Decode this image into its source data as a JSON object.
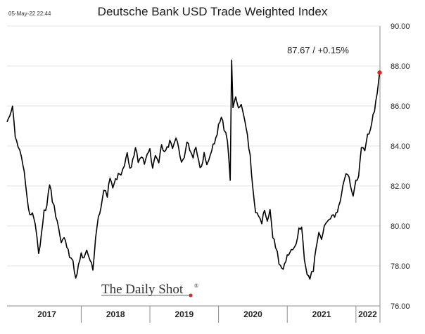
{
  "timestamp": "05-May-22 22:44",
  "chart_data": {
    "type": "line",
    "title": "Deutsche Bank USD Trade Weighted Index",
    "xlabel": "",
    "ylabel": "",
    "ylim": [
      76,
      90
    ],
    "y_ticks": [
      "76.00",
      "78.00",
      "80.00",
      "82.00",
      "84.00",
      "86.00",
      "88.00",
      "90.00"
    ],
    "x_range": [
      2016.92,
      2022.35
    ],
    "x_ticks": [
      {
        "label": "2017",
        "center": 2017.5
      },
      {
        "label": "2018",
        "center": 2018.5
      },
      {
        "label": "2019",
        "center": 2019.5
      },
      {
        "label": "2020",
        "center": 2020.5
      },
      {
        "label": "2021",
        "center": 2021.5
      },
      {
        "label": "2022",
        "center": 2022.17
      }
    ],
    "x_dividers": [
      2018.0,
      2019.0,
      2020.0,
      2021.0,
      2022.0
    ],
    "grid": true,
    "series": [
      {
        "name": "Deutsche Bank USD Trade Weighted Index",
        "color": "#000000",
        "points": [
          [
            2016.92,
            85.2
          ],
          [
            2016.96,
            85.6
          ],
          [
            2017.0,
            86.0
          ],
          [
            2017.04,
            84.5
          ],
          [
            2017.08,
            84.0
          ],
          [
            2017.13,
            83.5
          ],
          [
            2017.17,
            82.8
          ],
          [
            2017.21,
            81.5
          ],
          [
            2017.25,
            80.5
          ],
          [
            2017.29,
            80.6
          ],
          [
            2017.33,
            80.1
          ],
          [
            2017.38,
            78.6
          ],
          [
            2017.42,
            79.5
          ],
          [
            2017.46,
            80.8
          ],
          [
            2017.5,
            81.0
          ],
          [
            2017.54,
            82.1
          ],
          [
            2017.58,
            81.3
          ],
          [
            2017.63,
            80.5
          ],
          [
            2017.67,
            80.0
          ],
          [
            2017.71,
            79.2
          ],
          [
            2017.75,
            79.5
          ],
          [
            2017.79,
            79.0
          ],
          [
            2017.83,
            78.5
          ],
          [
            2017.88,
            78.2
          ],
          [
            2017.92,
            77.3
          ],
          [
            2017.96,
            78.0
          ],
          [
            2018.0,
            78.6
          ],
          [
            2018.04,
            78.3
          ],
          [
            2018.08,
            78.7
          ],
          [
            2018.13,
            78.2
          ],
          [
            2018.17,
            77.9
          ],
          [
            2018.21,
            79.5
          ],
          [
            2018.25,
            80.5
          ],
          [
            2018.29,
            81.0
          ],
          [
            2018.33,
            81.8
          ],
          [
            2018.38,
            81.5
          ],
          [
            2018.42,
            82.5
          ],
          [
            2018.46,
            82.0
          ],
          [
            2018.5,
            82.3
          ],
          [
            2018.54,
            82.6
          ],
          [
            2018.58,
            82.5
          ],
          [
            2018.63,
            83.0
          ],
          [
            2018.67,
            83.6
          ],
          [
            2018.71,
            82.8
          ],
          [
            2018.75,
            83.3
          ],
          [
            2018.79,
            84.0
          ],
          [
            2018.83,
            83.2
          ],
          [
            2018.88,
            83.5
          ],
          [
            2018.92,
            83.1
          ],
          [
            2018.96,
            83.6
          ],
          [
            2019.0,
            83.9
          ],
          [
            2019.04,
            82.9
          ],
          [
            2019.08,
            83.5
          ],
          [
            2019.13,
            83.1
          ],
          [
            2019.17,
            84.0
          ],
          [
            2019.21,
            83.7
          ],
          [
            2019.25,
            83.9
          ],
          [
            2019.29,
            84.2
          ],
          [
            2019.33,
            83.8
          ],
          [
            2019.38,
            84.3
          ],
          [
            2019.42,
            83.9
          ],
          [
            2019.46,
            83.2
          ],
          [
            2019.5,
            83.5
          ],
          [
            2019.54,
            84.2
          ],
          [
            2019.58,
            83.8
          ],
          [
            2019.63,
            83.4
          ],
          [
            2019.67,
            84.0
          ],
          [
            2019.71,
            83.2
          ],
          [
            2019.75,
            82.9
          ],
          [
            2019.79,
            83.6
          ],
          [
            2019.83,
            83.0
          ],
          [
            2019.88,
            83.5
          ],
          [
            2019.92,
            84.0
          ],
          [
            2019.96,
            84.3
          ],
          [
            2020.0,
            85.0
          ],
          [
            2020.04,
            85.5
          ],
          [
            2020.08,
            84.8
          ],
          [
            2020.13,
            84.3
          ],
          [
            2020.17,
            82.3
          ],
          [
            2020.19,
            88.3
          ],
          [
            2020.21,
            86.0
          ],
          [
            2020.25,
            86.5
          ],
          [
            2020.29,
            85.8
          ],
          [
            2020.33,
            86.0
          ],
          [
            2020.38,
            85.2
          ],
          [
            2020.42,
            84.5
          ],
          [
            2020.46,
            83.5
          ],
          [
            2020.5,
            81.8
          ],
          [
            2020.54,
            80.6
          ],
          [
            2020.58,
            80.5
          ],
          [
            2020.63,
            80.2
          ],
          [
            2020.67,
            80.8
          ],
          [
            2020.71,
            80.3
          ],
          [
            2020.75,
            80.9
          ],
          [
            2020.79,
            79.5
          ],
          [
            2020.83,
            79.0
          ],
          [
            2020.88,
            78.2
          ],
          [
            2020.92,
            77.8
          ],
          [
            2020.96,
            78.0
          ],
          [
            2021.0,
            78.5
          ],
          [
            2021.04,
            78.6
          ],
          [
            2021.08,
            78.8
          ],
          [
            2021.13,
            79.0
          ],
          [
            2021.17,
            79.8
          ],
          [
            2021.21,
            80.0
          ],
          [
            2021.25,
            78.4
          ],
          [
            2021.29,
            77.6
          ],
          [
            2021.33,
            77.4
          ],
          [
            2021.38,
            77.8
          ],
          [
            2021.42,
            79.0
          ],
          [
            2021.46,
            79.7
          ],
          [
            2021.5,
            79.4
          ],
          [
            2021.54,
            79.9
          ],
          [
            2021.58,
            80.1
          ],
          [
            2021.63,
            80.3
          ],
          [
            2021.67,
            80.5
          ],
          [
            2021.71,
            80.6
          ],
          [
            2021.75,
            81.0
          ],
          [
            2021.79,
            81.5
          ],
          [
            2021.83,
            82.4
          ],
          [
            2021.88,
            82.6
          ],
          [
            2021.92,
            82.1
          ],
          [
            2021.96,
            81.6
          ],
          [
            2022.0,
            82.3
          ],
          [
            2022.04,
            82.5
          ],
          [
            2022.08,
            84.0
          ],
          [
            2022.13,
            83.8
          ],
          [
            2022.17,
            84.5
          ],
          [
            2022.21,
            84.8
          ],
          [
            2022.25,
            85.5
          ],
          [
            2022.29,
            86.2
          ],
          [
            2022.33,
            87.2
          ],
          [
            2022.345,
            87.67
          ]
        ]
      }
    ],
    "last_point": {
      "x": 2022.345,
      "y": 87.67,
      "color": "#d62728"
    },
    "annotation": "87.67  /  +0.15%",
    "source": "The Daily Shot",
    "source_mark": "®"
  },
  "colors": {
    "line": "#000000",
    "marker": "#d62728",
    "grid": "#e6e6e6",
    "axis": "#8c8c8c"
  }
}
